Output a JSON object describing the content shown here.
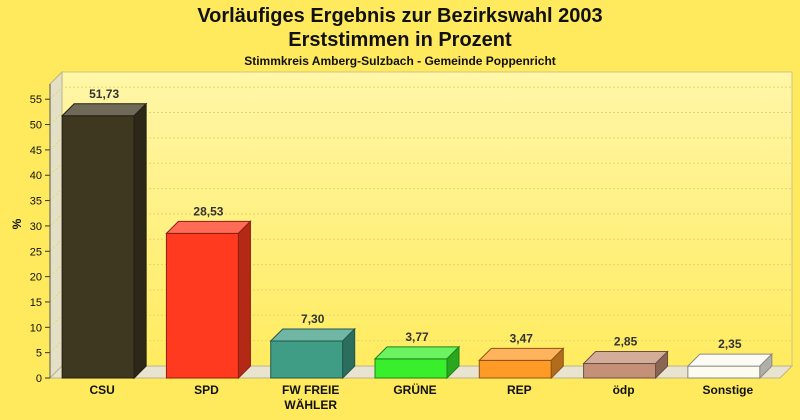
{
  "title_line1": "Vorläufiges Ergebnis zur Bezirkswahl 2003",
  "title_line2": "Erststimmen in Prozent",
  "subtitle": "Stimmkreis Amberg-Sulzbach - Gemeinde Poppenricht",
  "chart_data": {
    "type": "bar",
    "title": "Vorläufiges Ergebnis zur Bezirkswahl 2003 Erststimmen in Prozent",
    "subtitle": "Stimmkreis Amberg-Sulzbach - Gemeinde Poppenricht",
    "ylabel": "%",
    "xlabel": "",
    "ylim": [
      0,
      58
    ],
    "yticks": [
      0,
      5,
      10,
      15,
      20,
      25,
      30,
      35,
      40,
      45,
      50,
      55
    ],
    "grid": true,
    "legend": "none",
    "categories": [
      "CSU",
      "SPD",
      "FW FREIE WÄHLER",
      "GRÜNE",
      "REP",
      "ödp",
      "Sonstige"
    ],
    "category_lines": [
      [
        "CSU"
      ],
      [
        "SPD"
      ],
      [
        "FW FREIE",
        "WÄHLER"
      ],
      [
        "GRÜNE"
      ],
      [
        "REP"
      ],
      [
        "ödp"
      ],
      [
        "Sonstige"
      ]
    ],
    "values": [
      51.73,
      28.53,
      7.3,
      3.77,
      3.47,
      2.85,
      2.35
    ],
    "value_labels": [
      "51,73",
      "28,53",
      "7,30",
      "3,77",
      "3,47",
      "2,85",
      "2,35"
    ],
    "colors": [
      "#3f3820",
      "#ff3a1f",
      "#3f9d86",
      "#39ef2c",
      "#ff9a26",
      "#c49078",
      "#fbfbf0"
    ]
  }
}
